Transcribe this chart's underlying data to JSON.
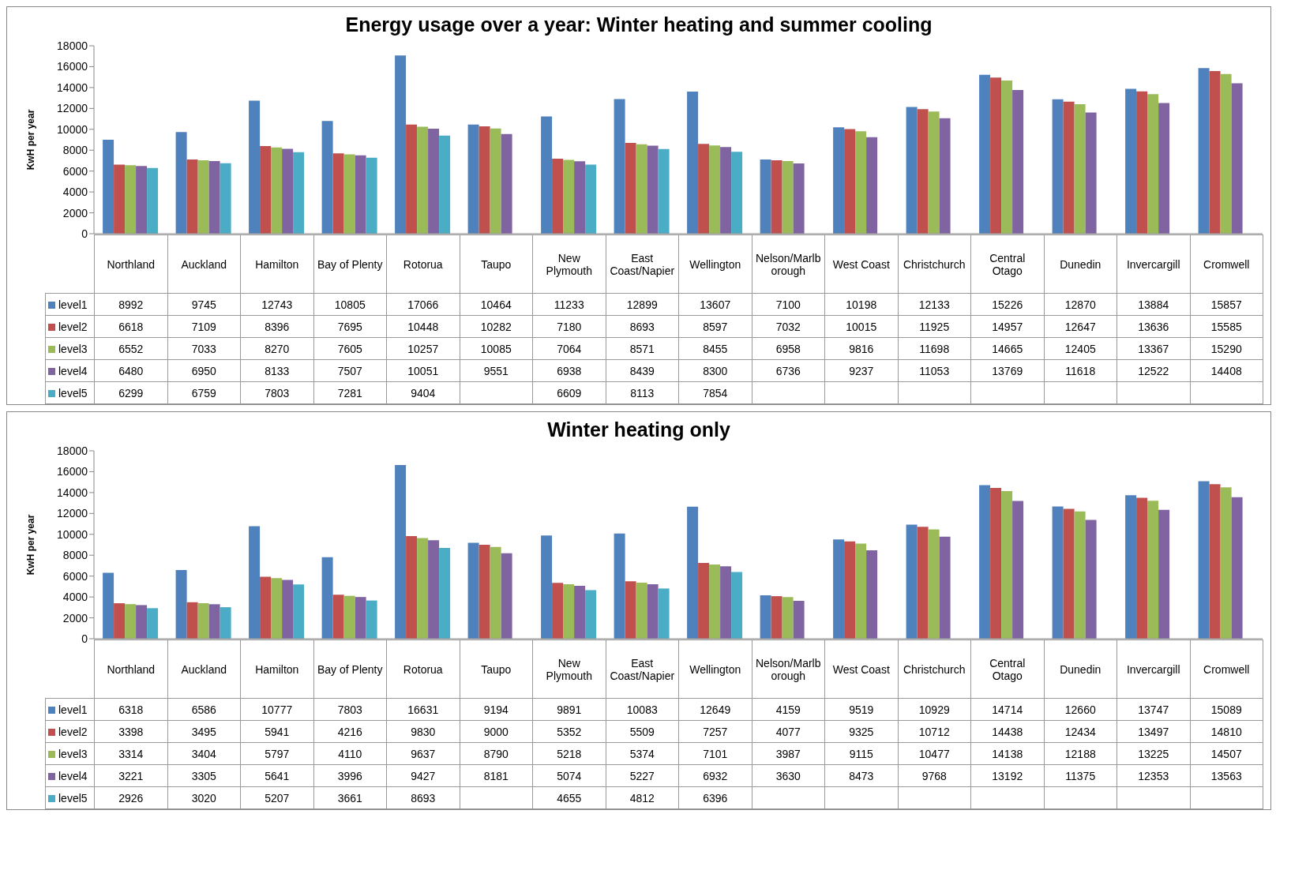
{
  "chart_data": [
    {
      "type": "bar",
      "title": "Energy usage over a year: Winter heating and summer cooling",
      "ylabel": "KwH per year",
      "legend": "bottom left",
      "categories": [
        "Northland",
        "Auckland",
        "Hamilton",
        "Bay of Plenty",
        "Rotorua",
        "Taupo",
        "New Plymouth",
        "East Coast/Napier",
        "Wellington",
        "Nelson/Marlborough",
        "West Coast",
        "Christchurch",
        "Central Otago",
        "Dunedin",
        "Invercargill",
        "Cromwell"
      ],
      "ylim": [
        0,
        18000
      ],
      "yticks": [
        0,
        2000,
        4000,
        6000,
        8000,
        10000,
        12000,
        14000,
        16000,
        18000
      ],
      "data_labels": true,
      "series": [
        {
          "name": "level1",
          "color": "#4f81bd",
          "values": [
            8992,
            9745,
            12743,
            10805,
            17066,
            10464,
            11233,
            12899,
            13607,
            7100,
            10198,
            12133,
            15226,
            12870,
            13884,
            15857
          ]
        },
        {
          "name": "level2",
          "color": "#c0504d",
          "values": [
            6618,
            7109,
            8396,
            7695,
            10448,
            10282,
            7180,
            8693,
            8597,
            7032,
            10015,
            11925,
            14957,
            12647,
            13636,
            15585
          ]
        },
        {
          "name": "level3",
          "color": "#9bbb59",
          "values": [
            6552,
            7033,
            8270,
            7605,
            10257,
            10085,
            7064,
            8571,
            8455,
            6958,
            9816,
            11698,
            14665,
            12405,
            13367,
            15290
          ]
        },
        {
          "name": "level4",
          "color": "#8064a2",
          "values": [
            6480,
            6950,
            8133,
            7507,
            10051,
            9551,
            6938,
            8439,
            8300,
            6736,
            9237,
            11053,
            13769,
            11618,
            12522,
            14408
          ]
        },
        {
          "name": "level5",
          "color": "#4bacc6",
          "values": [
            6299,
            6759,
            7803,
            7281,
            9404,
            null,
            6609,
            8113,
            7854,
            null,
            null,
            null,
            null,
            null,
            null,
            null
          ]
        }
      ]
    },
    {
      "type": "bar",
      "title": "Winter heating only",
      "ylabel": "KwH per year",
      "legend": "bottom left",
      "categories": [
        "Northland",
        "Auckland",
        "Hamilton",
        "Bay of Plenty",
        "Rotorua",
        "Taupo",
        "New Plymouth",
        "East Coast/Napier",
        "Wellington",
        "Nelson/Marlborough",
        "West Coast",
        "Christchurch",
        "Central Otago",
        "Dunedin",
        "Invercargill",
        "Cromwell"
      ],
      "ylim": [
        0,
        18000
      ],
      "yticks": [
        0,
        2000,
        4000,
        6000,
        8000,
        10000,
        12000,
        14000,
        16000,
        18000
      ],
      "data_labels": true,
      "series": [
        {
          "name": "level1",
          "color": "#4f81bd",
          "values": [
            6318,
            6586,
            10777,
            7803,
            16631,
            9194,
            9891,
            10083,
            12649,
            4159,
            9519,
            10929,
            14714,
            12660,
            13747,
            15089
          ]
        },
        {
          "name": "level2",
          "color": "#c0504d",
          "values": [
            3398,
            3495,
            5941,
            4216,
            9830,
            9000,
            5352,
            5509,
            7257,
            4077,
            9325,
            10712,
            14438,
            12434,
            13497,
            14810
          ]
        },
        {
          "name": "level3",
          "color": "#9bbb59",
          "values": [
            3314,
            3404,
            5797,
            4110,
            9637,
            8790,
            5218,
            5374,
            7101,
            3987,
            9115,
            10477,
            14138,
            12188,
            13225,
            14507
          ]
        },
        {
          "name": "level4",
          "color": "#8064a2",
          "values": [
            3221,
            3305,
            5641,
            3996,
            9427,
            8181,
            5074,
            5227,
            6932,
            3630,
            8473,
            9768,
            13192,
            11375,
            12353,
            13563
          ]
        },
        {
          "name": "level5",
          "color": "#4bacc6",
          "values": [
            2926,
            3020,
            5207,
            3661,
            8693,
            null,
            4655,
            4812,
            6396,
            null,
            null,
            null,
            null,
            null,
            null,
            null
          ]
        }
      ]
    }
  ]
}
